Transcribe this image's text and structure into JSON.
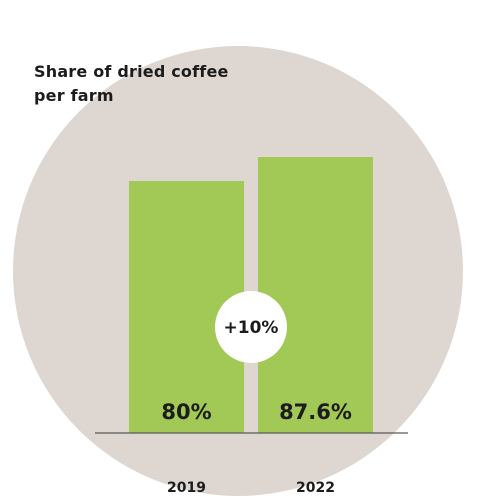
{
  "chart_data": {
    "type": "bar",
    "title_lines": [
      "Share of dried coffee",
      "per farm"
    ],
    "categories": [
      "2019",
      "2022"
    ],
    "values": [
      80,
      87.6
    ],
    "value_labels": [
      "80%",
      "87.6%"
    ],
    "unit": "%",
    "annotation": "+10%",
    "xlabel": "",
    "ylabel": "",
    "grid": false,
    "legend": "none"
  },
  "colors": {
    "background_circle": "#ddd6d1",
    "bar": "#a2c856",
    "baseline": "#5a5a5a",
    "text": "#1c1c1c",
    "badge": "#ffffff"
  }
}
